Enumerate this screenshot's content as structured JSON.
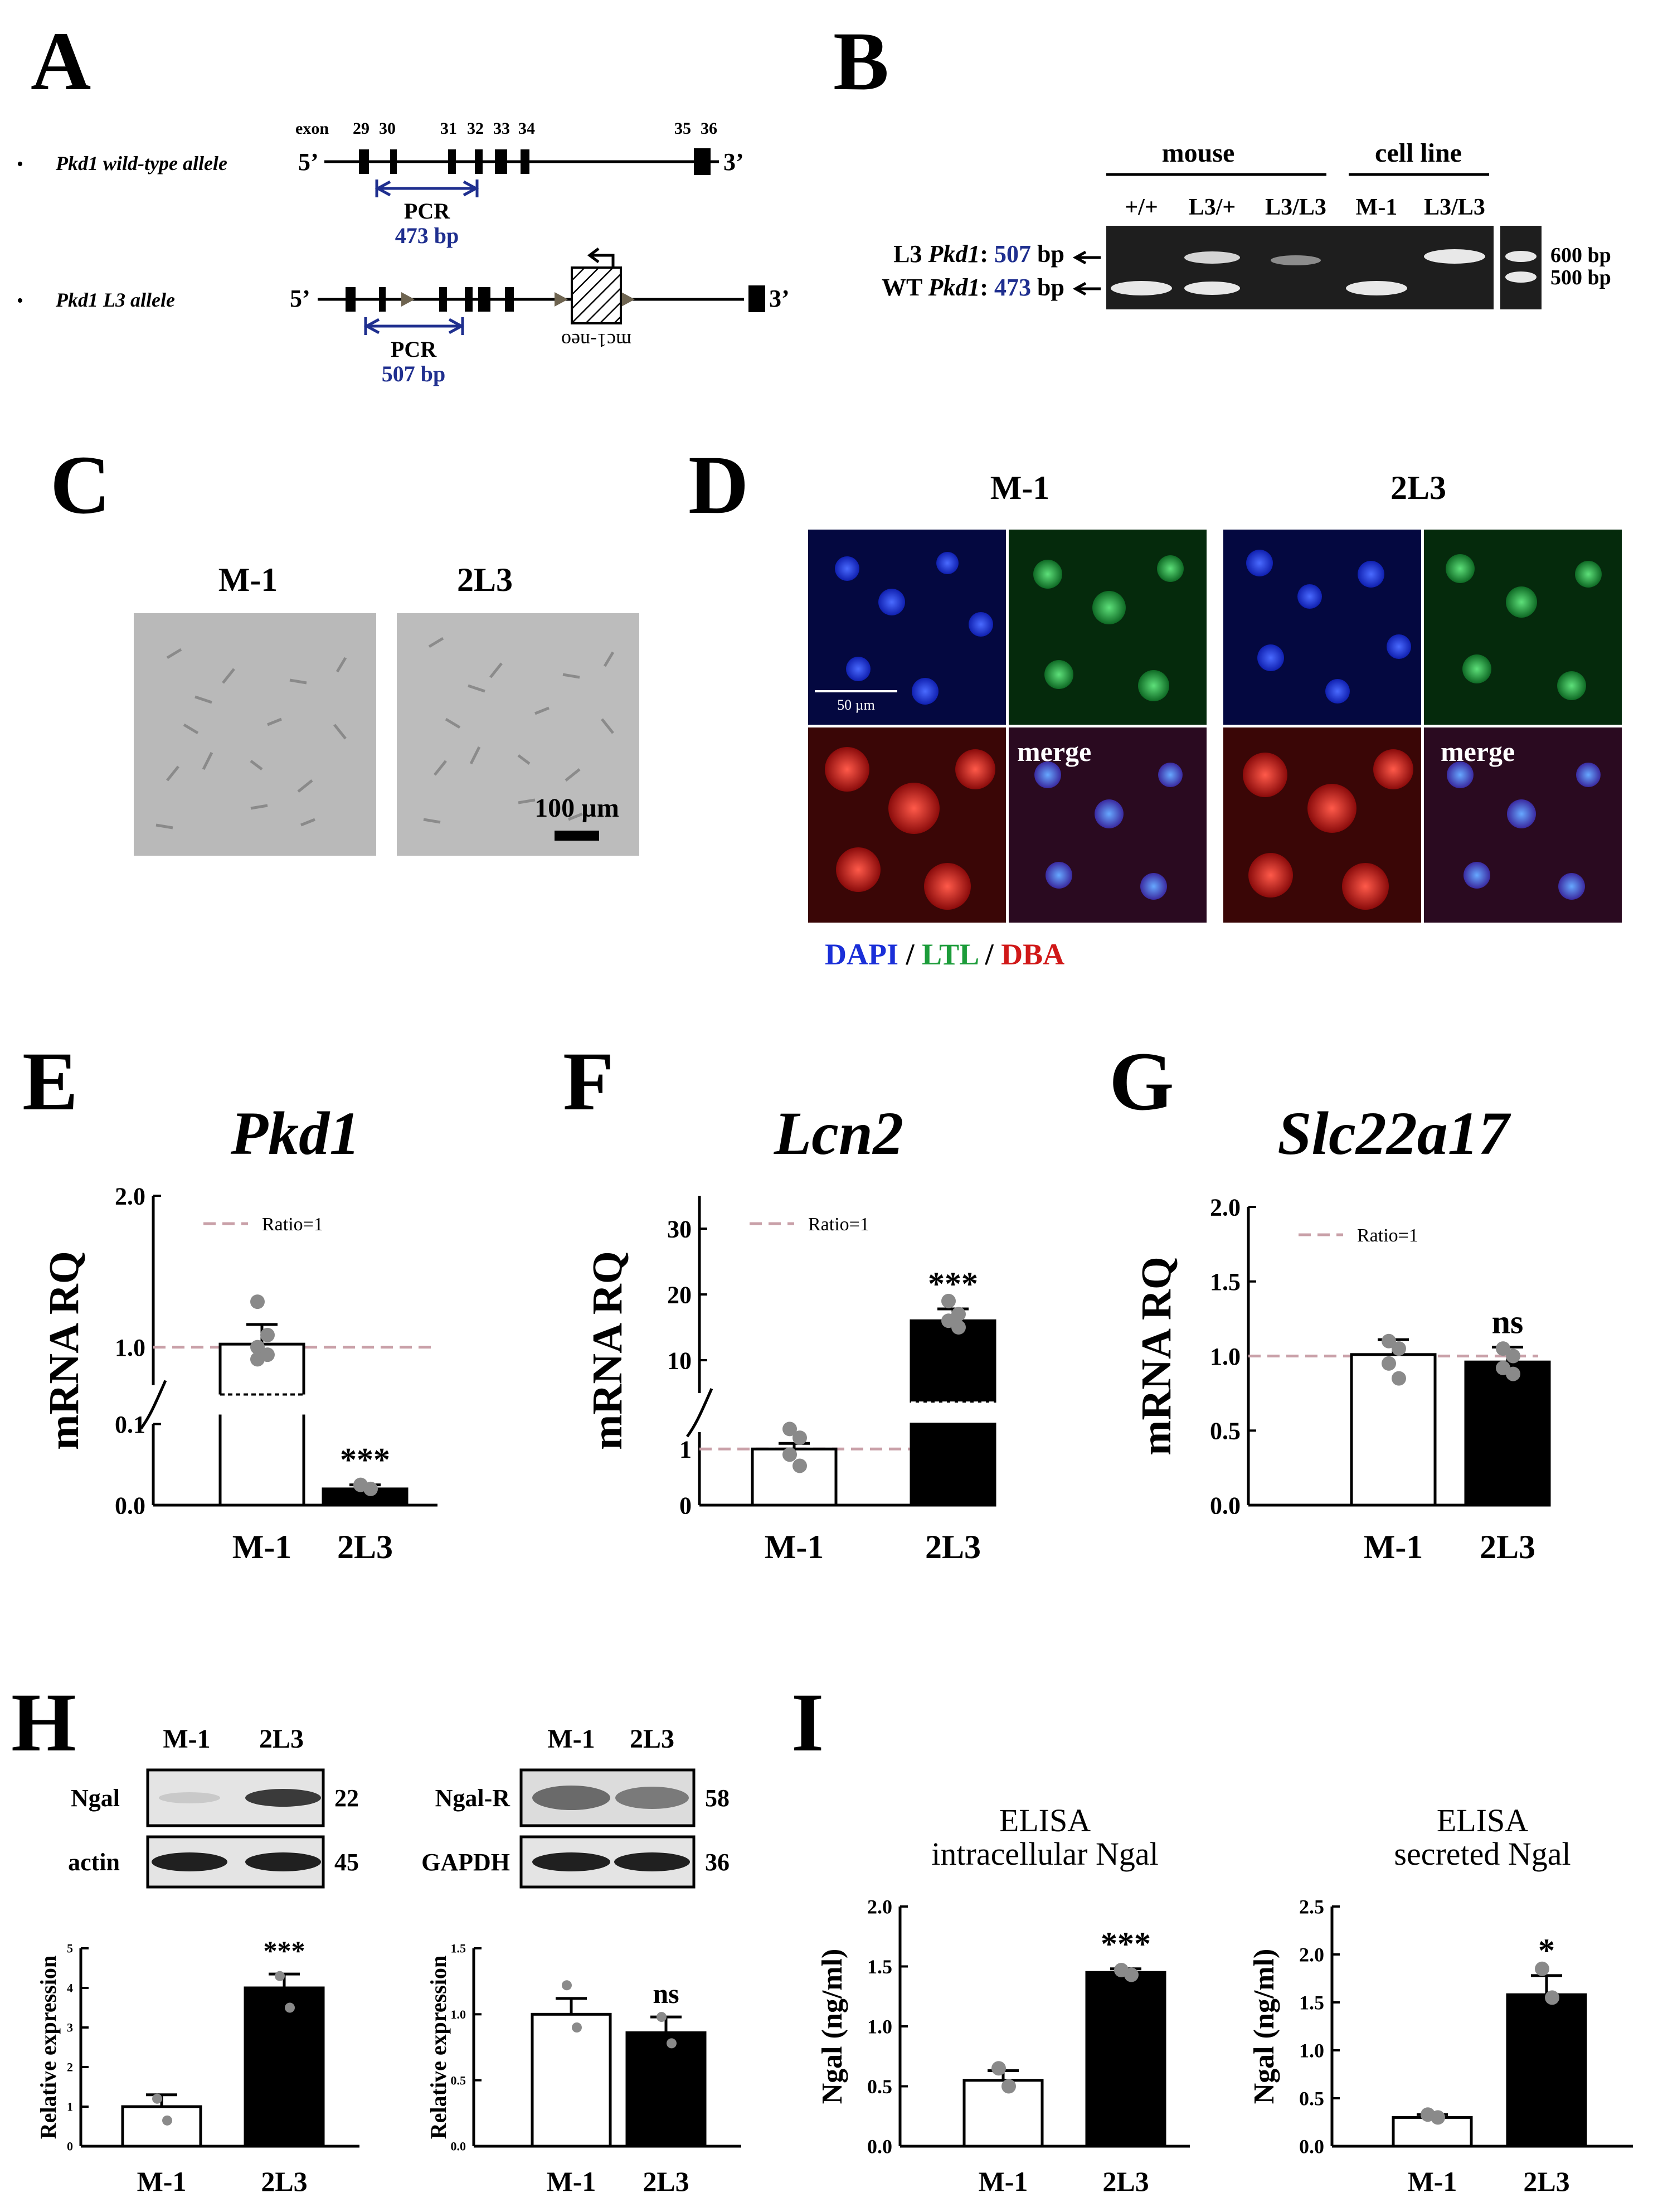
{
  "panels": {
    "A": {
      "letter": "A",
      "wt_label": "Pkd1 wild-type allele",
      "l3_label": "Pkd1 L3 allele",
      "bullet": "•",
      "exon_word": "exon",
      "exon_numbers": [
        "29",
        "30",
        "31",
        "32",
        "33",
        "34",
        "35",
        "36"
      ],
      "five_prime": "5’",
      "three_prime": "3’",
      "pcr_word": "PCR",
      "wt_pcr_size": "473 bp",
      "l3_pcr_size": "507 bp",
      "cassette_label": "mc1-neo",
      "colors": {
        "size_text": "#1f2f8f",
        "arrow": "#1f2f8f",
        "loxp": "#6e6450"
      }
    },
    "B": {
      "letter": "B",
      "group_mouse": "mouse",
      "group_cell_line": "cell line",
      "lanes": [
        "+/+",
        "L3/+",
        "L3/L3",
        "M-1",
        "L3/L3"
      ],
      "band_l3_prefix": "L3 ",
      "band_l3_gene": "Pkd1",
      "band_l3_colon": ": ",
      "band_l3_size": "507",
      "band_l3_unit": " bp",
      "band_wt_prefix": "WT ",
      "band_wt_gene": "Pkd1",
      "band_wt_colon": ": ",
      "band_wt_size": "473",
      "band_wt_unit": " bp",
      "ladder_600": "600 bp",
      "ladder_500": "500 bp"
    },
    "C": {
      "letter": "C",
      "label_left": "M-1",
      "label_right": "2L3",
      "scale_bar": "100 µm"
    },
    "D": {
      "letter": "D",
      "label_left": "M-1",
      "label_right": "2L3",
      "merge_label": "merge",
      "scale_bar": "50 µm",
      "legend_dapi": "DAPI",
      "legend_sep": " / ",
      "legend_ltl": "LTL",
      "legend_dba": "DBA",
      "colors": {
        "dapi": "#1a2fd8",
        "ltl": "#1c9c3a",
        "dba": "#d01818"
      }
    },
    "H": {
      "letter": "H",
      "blot_left": {
        "lanes": [
          "M-1",
          "2L3"
        ],
        "rows": [
          "Ngal",
          "actin"
        ],
        "kda": [
          "22",
          "45"
        ]
      },
      "blot_right": {
        "lanes": [
          "M-1",
          "2L3"
        ],
        "rows": [
          "Ngal-R",
          "GAPDH"
        ],
        "kda": [
          "58",
          "36"
        ]
      }
    },
    "I": {
      "letter": "I"
    }
  },
  "chart_data": [
    {
      "id": "E",
      "letter": "E",
      "type": "bar",
      "title": "Pkd1",
      "title_italic": true,
      "ylabel": "mRNA RQ",
      "xlabel": "",
      "categories": [
        "M-1",
        "2L3"
      ],
      "values": [
        1.02,
        0.02
      ],
      "errors": [
        0.13,
        0.005
      ],
      "points": [
        [
          1.3,
          1.08,
          1.0,
          0.95,
          0.92
        ],
        [
          0.025,
          0.02
        ]
      ],
      "bar_fill": [
        "#ffffff",
        "#000000"
      ],
      "ylim": [
        0,
        2.0
      ],
      "broken_axis": true,
      "segments": [
        {
          "from": 0,
          "to": 0.1
        },
        {
          "from": 0.75,
          "to": 2.0
        }
      ],
      "ytick_labels": [
        "0.0",
        "0.1",
        "1.0",
        "2.0"
      ],
      "reference_line": {
        "value": 1,
        "label": "Ratio=1",
        "color": "#c9a0a8"
      },
      "significance": [
        "",
        "***"
      ]
    },
    {
      "id": "F",
      "letter": "F",
      "type": "bar",
      "title": "Lcn2",
      "title_italic": true,
      "ylabel": "mRNA RQ",
      "xlabel": "",
      "categories": [
        "M-1",
        "2L3"
      ],
      "values": [
        1.0,
        16.0
      ],
      "errors": [
        0.1,
        1.8
      ],
      "points": [
        [
          1.6,
          1.2,
          0.9,
          0.7
        ],
        [
          19.0,
          17.0,
          16.0,
          15.0
        ]
      ],
      "bar_fill": [
        "#ffffff",
        "#000000"
      ],
      "ylim": [
        0,
        35
      ],
      "broken_axis": true,
      "segments": [
        {
          "from": 0,
          "to": 1.3
        },
        {
          "from": 5,
          "to": 35
        }
      ],
      "ytick_labels": [
        "0",
        "1",
        "10",
        "20",
        "30"
      ],
      "reference_line": {
        "value": 1,
        "label": "Ratio=1",
        "color": "#c9a0a8"
      },
      "significance": [
        "",
        "***"
      ]
    },
    {
      "id": "G",
      "letter": "G",
      "type": "bar",
      "title": "Slc22a17",
      "title_italic": true,
      "ylabel": "mRNA RQ",
      "xlabel": "",
      "categories": [
        "M-1",
        "2L3"
      ],
      "values": [
        1.01,
        0.96
      ],
      "errors": [
        0.1,
        0.1
      ],
      "points": [
        [
          1.1,
          1.05,
          0.95,
          0.85
        ],
        [
          1.05,
          1.0,
          0.92,
          0.88
        ]
      ],
      "bar_fill": [
        "#ffffff",
        "#000000"
      ],
      "ylim": [
        0,
        2.0
      ],
      "broken_axis": false,
      "ytick_labels": [
        "0.0",
        "0.5",
        "1.0",
        "1.5",
        "2.0"
      ],
      "reference_line": {
        "value": 1,
        "label": "Ratio=1",
        "color": "#c9a0a8"
      },
      "significance": [
        "",
        "ns"
      ]
    },
    {
      "id": "H1",
      "type": "bar",
      "ylabel": "Relative expression",
      "categories": [
        "M-1",
        "2L3"
      ],
      "values": [
        1.0,
        4.0
      ],
      "errors": [
        0.3,
        0.35
      ],
      "points": [
        [
          1.2,
          0.65
        ],
        [
          4.3,
          3.5
        ]
      ],
      "bar_fill": [
        "#ffffff",
        "#000000"
      ],
      "ylim": [
        0,
        5
      ],
      "ytick_labels": [
        "0",
        "1",
        "2",
        "3",
        "4",
        "5"
      ],
      "significance": [
        "",
        "***"
      ]
    },
    {
      "id": "H2",
      "type": "bar",
      "ylabel": "Relative expression",
      "categories": [
        "M-1",
        "2L3"
      ],
      "values": [
        1.0,
        0.86
      ],
      "errors": [
        0.12,
        0.12
      ],
      "points": [
        [
          1.22,
          0.9
        ],
        [
          0.98,
          0.78
        ]
      ],
      "bar_fill": [
        "#ffffff",
        "#000000"
      ],
      "ylim": [
        0,
        1.5
      ],
      "ytick_labels": [
        "0.0",
        "0.5",
        "1.0",
        "1.5"
      ],
      "significance": [
        "",
        "ns"
      ]
    },
    {
      "id": "I1",
      "type": "bar",
      "title_lines": [
        "ELISA",
        "intracellular Ngal"
      ],
      "ylabel": "Ngal (ng/ml)",
      "categories": [
        "M-1",
        "2L3"
      ],
      "values": [
        0.55,
        1.45
      ],
      "errors": [
        0.08,
        0.03
      ],
      "points": [
        [
          0.65,
          0.5
        ],
        [
          1.47,
          1.43
        ]
      ],
      "bar_fill": [
        "#ffffff",
        "#000000"
      ],
      "ylim": [
        0,
        2.0
      ],
      "ytick_labels": [
        "0.0",
        "0.5",
        "1.0",
        "1.5",
        "2.0"
      ],
      "significance": [
        "",
        "***"
      ]
    },
    {
      "id": "I2",
      "type": "bar",
      "title_lines": [
        "ELISA",
        "secreted Ngal"
      ],
      "ylabel": "Ngal (ng/ml)",
      "categories": [
        "M-1",
        "2L3"
      ],
      "values": [
        0.3,
        1.58
      ],
      "errors": [
        0.03,
        0.2
      ],
      "points": [
        [
          0.33,
          0.3
        ],
        [
          1.85,
          1.55
        ]
      ],
      "bar_fill": [
        "#ffffff",
        "#000000"
      ],
      "ylim": [
        0,
        2.5
      ],
      "ytick_labels": [
        "0.0",
        "0.5",
        "1.0",
        "1.5",
        "2.0",
        "2.5"
      ],
      "significance": [
        "",
        "*"
      ]
    }
  ]
}
